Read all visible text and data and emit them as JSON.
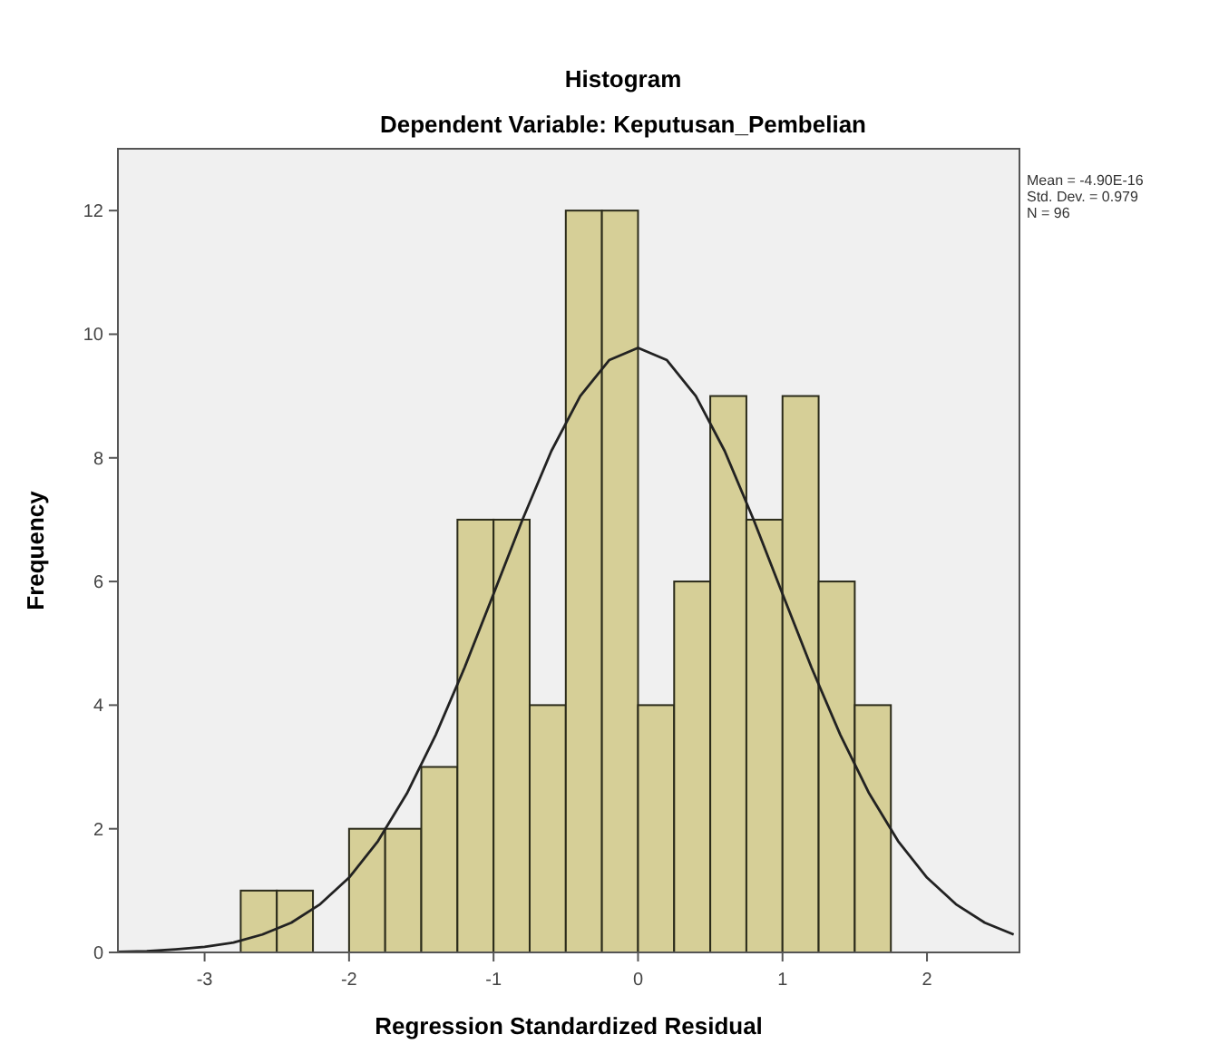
{
  "chart_data": {
    "type": "histogram",
    "title": "Histogram",
    "subtitle": "Dependent Variable: Keputusan_Pembelian",
    "xlabel": "Regression Standardized Residual",
    "ylabel": "Frequency",
    "xlim": [
      -3.6,
      2.64
    ],
    "xticks": [
      -3,
      -2,
      -1,
      0,
      1,
      2
    ],
    "ylim": [
      0,
      13
    ],
    "yticks": [
      0,
      2,
      4,
      6,
      8,
      10,
      12
    ],
    "grid": false,
    "series": [
      {
        "color": "#d6cf97",
        "bins": [
          -2.75,
          -2.5,
          -2.25,
          -2,
          -1.75,
          -1.5,
          -1.25,
          -1,
          -0.75,
          -0.5,
          -0.25,
          0,
          0.25,
          0.5,
          0.75,
          1,
          1.25,
          1.5,
          1.75
        ],
        "values": [
          1,
          1,
          0,
          2,
          2,
          3,
          7,
          7,
          4,
          12,
          12,
          4,
          6,
          9,
          7,
          9,
          6,
          4
        ]
      },
      {
        "type": "line",
        "color": "#222222",
        "x": [
          -3.6,
          -3.4,
          -3.2,
          -3,
          -2.8,
          -2.6,
          -2.4,
          -2.2,
          -2,
          -1.8,
          -1.6,
          -1.4,
          -1.2,
          -1,
          -0.8,
          -0.6,
          -0.4,
          -0.2,
          0,
          0.2,
          0.4,
          0.6,
          0.8,
          1,
          1.2,
          1.4,
          1.6,
          1.8,
          2,
          2.2,
          2.4,
          2.6
        ],
        "values": [
          0.01,
          0.02,
          0.05,
          0.09,
          0.16,
          0.29,
          0.48,
          0.78,
          1.21,
          1.8,
          2.57,
          3.52,
          4.61,
          5.8,
          7,
          8.11,
          9,
          9.58,
          9.78,
          9.58,
          9,
          8.11,
          7,
          5.8,
          4.61,
          3.52,
          2.57,
          1.8,
          1.21,
          0.78,
          0.48,
          0.29
        ]
      }
    ],
    "annotations": [
      "Mean = -4.90E-16",
      "Std. Dev. = 0.979",
      "N = 96"
    ]
  }
}
